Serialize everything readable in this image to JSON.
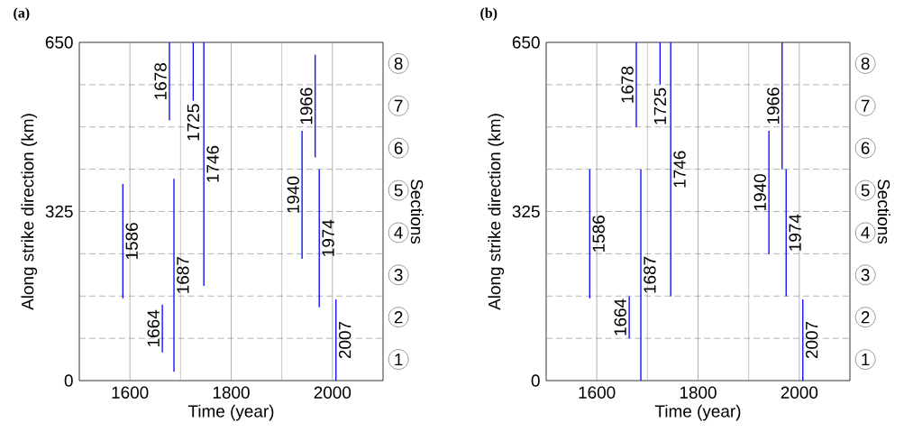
{
  "chart_data": [
    {
      "type": "line",
      "title": "(a)",
      "xlabel": "Time (year)",
      "ylabel": "Along strike direction (km)",
      "y2label": "Sections",
      "xlim": [
        1500,
        2100
      ],
      "ylim": [
        0,
        650
      ],
      "y2lim": [
        0.5,
        8.5
      ],
      "xticks": [
        1600,
        1800,
        2000
      ],
      "yticks": [
        0,
        325,
        650
      ],
      "y2ticks": [
        1,
        2,
        3,
        4,
        5,
        6,
        7,
        8
      ],
      "grid": "x",
      "line_style": "solid",
      "ref_lines": [
        {
          "axis": "x",
          "value": 1700,
          "color": "#a0a0a0",
          "line_style": "solid"
        },
        {
          "axis": "x",
          "value": 1900,
          "color": "#a0a0a0",
          "line_style": "solid"
        },
        {
          "axis": "y",
          "value": 81.25,
          "color": "#808080",
          "line_style": "dashed"
        },
        {
          "axis": "y",
          "value": 162.5,
          "color": "#808080",
          "line_style": "dashed"
        },
        {
          "axis": "y",
          "value": 243.75,
          "color": "#808080",
          "line_style": "dashed"
        },
        {
          "axis": "y",
          "value": 325,
          "color": "#808080",
          "line_style": "dashed"
        },
        {
          "axis": "y",
          "value": 406.25,
          "color": "#808080",
          "line_style": "dashed"
        },
        {
          "axis": "y",
          "value": 487.5,
          "color": "#808080",
          "line_style": "dashed"
        },
        {
          "axis": "y",
          "value": 568.75,
          "color": "#808080",
          "line_style": "dashed"
        }
      ],
      "series": [
        {
          "name": "1586",
          "color": "#0000ff",
          "x": [
            1586,
            1586
          ],
          "values": [
            158,
            378
          ]
        },
        {
          "name": "1664",
          "color": "#0000ff",
          "x": [
            1664,
            1664
          ],
          "values": [
            54,
            146
          ]
        },
        {
          "name": "1678",
          "color": "#0000ff",
          "x": [
            1678,
            1678
          ],
          "values": [
            500,
            650
          ]
        },
        {
          "name": "1687",
          "color": "#0000ff",
          "x": [
            1687,
            1687
          ],
          "values": [
            17,
            388
          ]
        },
        {
          "name": "1725",
          "color": "#0000ff",
          "x": [
            1725,
            1725
          ],
          "values": [
            538,
            650
          ]
        },
        {
          "name": "1746",
          "color": "#0000ff",
          "x": [
            1746,
            1746
          ],
          "values": [
            182,
            650
          ]
        },
        {
          "name": "1940",
          "color": "#0000ff",
          "x": [
            1940,
            1940
          ],
          "values": [
            234,
            480
          ]
        },
        {
          "name": "1966",
          "color": "#0000ff",
          "x": [
            1966,
            1966
          ],
          "values": [
            429,
            626
          ]
        },
        {
          "name": "1974",
          "color": "#0000ff",
          "x": [
            1974,
            1974
          ],
          "values": [
            141,
            406
          ]
        },
        {
          "name": "2007",
          "color": "#0000ff",
          "x": [
            2007,
            2007
          ],
          "values": [
            0,
            156
          ]
        }
      ]
    },
    {
      "type": "line",
      "title": "(b)",
      "xlabel": "Time (year)",
      "ylabel": "Along strike direction (km)",
      "y2label": "Sections",
      "xlim": [
        1500,
        2100
      ],
      "ylim": [
        0,
        650
      ],
      "y2lim": [
        0.5,
        8.5
      ],
      "xticks": [
        1600,
        1800,
        2000
      ],
      "yticks": [
        0,
        325,
        650
      ],
      "y2ticks": [
        1,
        2,
        3,
        4,
        5,
        6,
        7,
        8
      ],
      "grid": "x",
      "line_style": "solid",
      "ref_lines": [
        {
          "axis": "x",
          "value": 1700,
          "color": "#a0a0a0",
          "line_style": "solid"
        },
        {
          "axis": "x",
          "value": 1900,
          "color": "#a0a0a0",
          "line_style": "solid"
        },
        {
          "axis": "y",
          "value": 81.25,
          "color": "#808080",
          "line_style": "dashed"
        },
        {
          "axis": "y",
          "value": 162.5,
          "color": "#808080",
          "line_style": "dashed"
        },
        {
          "axis": "y",
          "value": 243.75,
          "color": "#808080",
          "line_style": "dashed"
        },
        {
          "axis": "y",
          "value": 325,
          "color": "#808080",
          "line_style": "dashed"
        },
        {
          "axis": "y",
          "value": 406.25,
          "color": "#808080",
          "line_style": "dashed"
        },
        {
          "axis": "y",
          "value": 487.5,
          "color": "#808080",
          "line_style": "dashed"
        },
        {
          "axis": "y",
          "value": 568.75,
          "color": "#808080",
          "line_style": "dashed"
        }
      ],
      "series": [
        {
          "name": "1586",
          "color": "#0000ff",
          "x": [
            1586,
            1586
          ],
          "values": [
            158,
            406
          ]
        },
        {
          "name": "1664",
          "color": "#0000ff",
          "x": [
            1664,
            1664
          ],
          "values": [
            81,
            162
          ]
        },
        {
          "name": "1678",
          "color": "#0000ff",
          "x": [
            1678,
            1678
          ],
          "values": [
            487,
            650
          ]
        },
        {
          "name": "1687",
          "color": "#0000ff",
          "x": [
            1687,
            1687
          ],
          "values": [
            0,
            406
          ]
        },
        {
          "name": "1725",
          "color": "#0000ff",
          "x": [
            1725,
            1725
          ],
          "values": [
            569,
            650
          ]
        },
        {
          "name": "1746",
          "color": "#0000ff",
          "x": [
            1746,
            1746
          ],
          "values": [
            162,
            650
          ]
        },
        {
          "name": "1940",
          "color": "#0000ff",
          "x": [
            1940,
            1940
          ],
          "values": [
            243,
            480
          ]
        },
        {
          "name": "1966",
          "color": "#0000ff",
          "x": [
            1966,
            1966
          ],
          "values": [
            406,
            650
          ]
        },
        {
          "name": "1974",
          "color": "#0000ff",
          "x": [
            1974,
            1974
          ],
          "values": [
            162,
            406
          ]
        },
        {
          "name": "2007",
          "color": "#0000ff",
          "x": [
            2007,
            2007
          ],
          "values": [
            0,
            156
          ]
        }
      ]
    }
  ]
}
